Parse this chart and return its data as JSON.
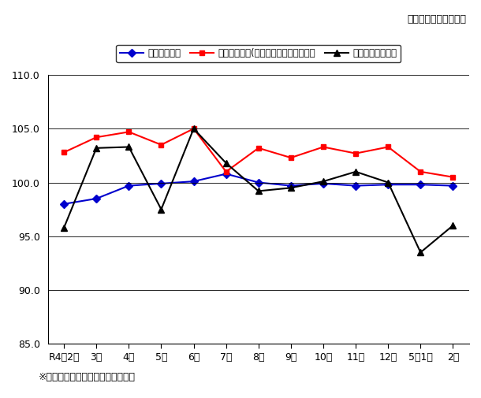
{
  "x_labels": [
    "R4年2月",
    "3月",
    "4月",
    "5月",
    "6月",
    "7月",
    "8月",
    "9月",
    "10月",
    "11月",
    "12月",
    "5年1月",
    "2月"
  ],
  "employment_index": [
    98.0,
    98.5,
    99.7,
    99.9,
    100.1,
    100.8,
    100.0,
    99.7,
    99.9,
    99.7,
    99.8,
    99.8,
    99.7
  ],
  "wage_index": [
    102.8,
    104.2,
    104.7,
    103.5,
    105.0,
    101.0,
    103.2,
    102.3,
    103.3,
    102.7,
    103.3,
    101.0,
    100.5
  ],
  "labor_hours_index": [
    95.8,
    103.2,
    103.3,
    97.5,
    105.0,
    101.8,
    99.2,
    99.5,
    100.1,
    101.0,
    100.0,
    93.5,
    96.0
  ],
  "employment_color": "#0000CD",
  "wage_color": "#FF0000",
  "labor_hours_color": "#000000",
  "ylim": [
    85.0,
    110.0
  ],
  "yticks": [
    85.0,
    90.0,
    95.0,
    100.0,
    105.0,
    110.0
  ],
  "legend_employment": "常用雇用指数",
  "legend_wage": "名目賃金指数(きまって支給する給与）",
  "legend_labor": "総実労働時間指数",
  "top_note": "（令和２年＝１００）",
  "bottom_note": "※事業所規模５人以上：調査産業計",
  "bg_color": "#FFFFFF",
  "grid_color": "#000000"
}
